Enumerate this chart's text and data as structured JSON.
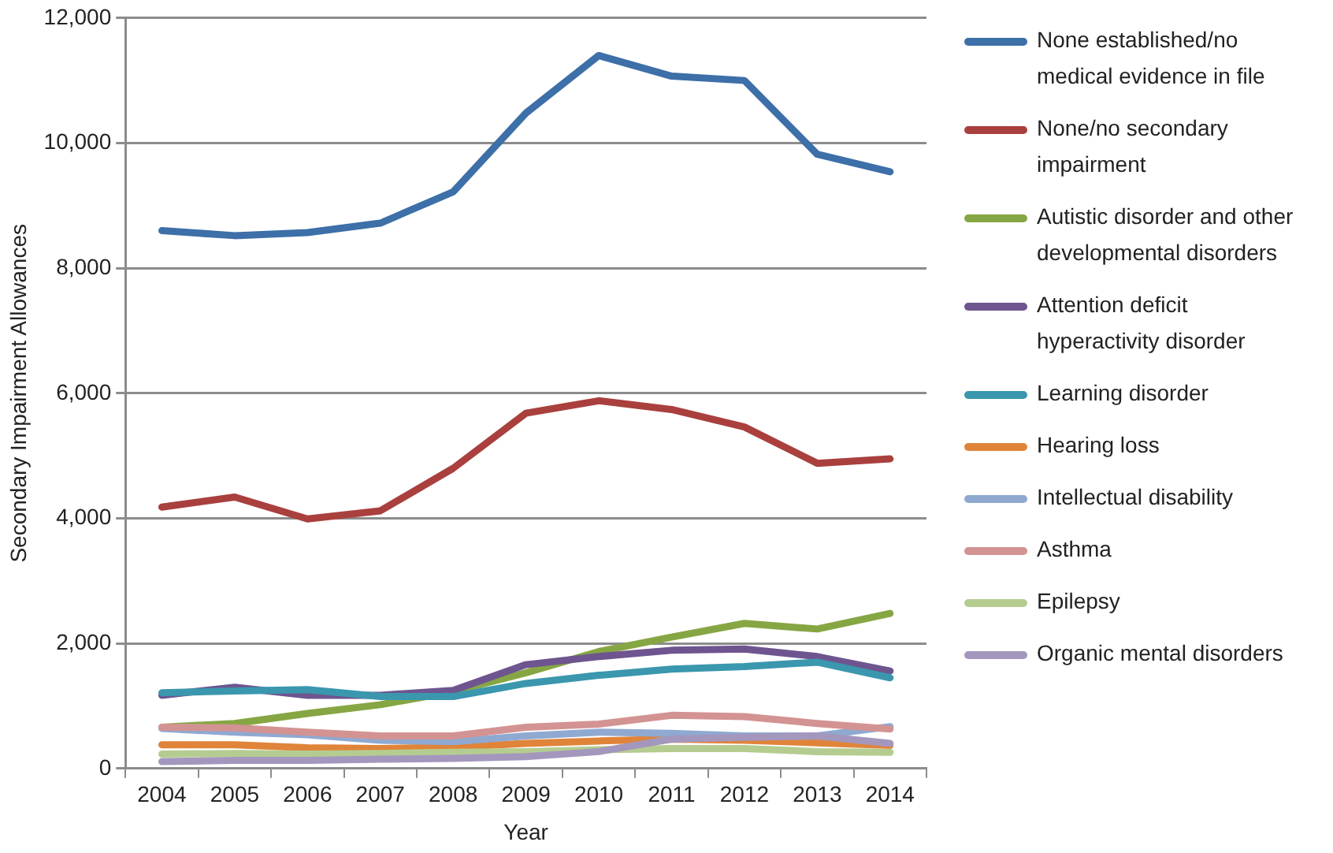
{
  "chart_data": {
    "type": "line",
    "xlabel": "Year",
    "ylabel": "Secondary Impairment Allowances",
    "categories": [
      "2004",
      "2005",
      "2006",
      "2007",
      "2008",
      "2009",
      "2010",
      "2011",
      "2012",
      "2013",
      "2014"
    ],
    "ylim": [
      0,
      12000
    ],
    "yticks": [
      {
        "value": 0,
        "label": "0"
      },
      {
        "value": 2000,
        "label": "2,000"
      },
      {
        "value": 4000,
        "label": "4,000"
      },
      {
        "value": 6000,
        "label": "6,000"
      },
      {
        "value": 8000,
        "label": "8,000"
      },
      {
        "value": 10000,
        "label": "10,000"
      },
      {
        "value": 12000,
        "label": "12,000"
      }
    ],
    "grid": "y",
    "legend": "right",
    "marker": "none",
    "line_style": "solid",
    "series": [
      {
        "name": "None established/no medical evidence in file",
        "color": "#3d6fa8",
        "values": [
          8600,
          8520,
          8570,
          8720,
          9220,
          10480,
          11400,
          11070,
          11000,
          9820,
          9540
        ]
      },
      {
        "name": "None/no secondary impairment",
        "color": "#a9403e",
        "values": [
          4180,
          4340,
          3990,
          4120,
          4800,
          5680,
          5880,
          5740,
          5460,
          4880,
          4950
        ]
      },
      {
        "name": "Autistic disorder and other developmental disorders",
        "color": "#86a644",
        "values": [
          660,
          720,
          880,
          1020,
          1230,
          1530,
          1870,
          2100,
          2320,
          2230,
          2480
        ]
      },
      {
        "name": "Attention deficit hyperactivity disorder",
        "color": "#6e558f",
        "values": [
          1170,
          1300,
          1170,
          1170,
          1250,
          1660,
          1790,
          1890,
          1910,
          1790,
          1560
        ]
      },
      {
        "name": "Learning disorder",
        "color": "#3a97ae",
        "values": [
          1210,
          1240,
          1260,
          1150,
          1150,
          1360,
          1490,
          1590,
          1630,
          1700,
          1450
        ]
      },
      {
        "name": "Hearing loss",
        "color": "#e0843a",
        "values": [
          380,
          380,
          330,
          320,
          340,
          400,
          440,
          470,
          450,
          410,
          370
        ]
      },
      {
        "name": "Intellectual disability",
        "color": "#8fa9d1",
        "values": [
          640,
          580,
          540,
          450,
          430,
          520,
          580,
          560,
          520,
          520,
          670
        ]
      },
      {
        "name": "Asthma",
        "color": "#d39392",
        "values": [
          660,
          650,
          580,
          520,
          520,
          660,
          710,
          850,
          830,
          720,
          630
        ]
      },
      {
        "name": "Epilepsy",
        "color": "#b5cc91",
        "values": [
          230,
          240,
          230,
          240,
          260,
          270,
          300,
          320,
          320,
          270,
          260
        ]
      },
      {
        "name": "Organic mental disorders",
        "color": "#a497bd",
        "values": [
          110,
          130,
          130,
          150,
          160,
          190,
          270,
          470,
          500,
          520,
          400
        ]
      }
    ]
  }
}
